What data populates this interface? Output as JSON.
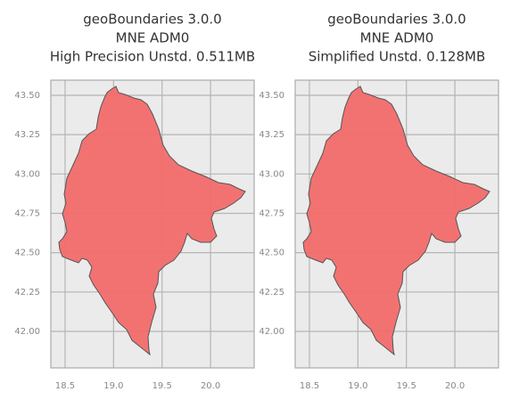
{
  "chart_data": [
    {
      "type": "map",
      "title": [
        "geoBoundaries 3.0.0",
        "MNE ADM0",
        "High Precision Unstd. 0.511MB"
      ],
      "xlim": [
        18.353,
        20.45
      ],
      "ylim": [
        41.768,
        43.596
      ],
      "xticks": [
        {
          "value": 18.5,
          "label": "18.5"
        },
        {
          "value": 19.0,
          "label": "19.0"
        },
        {
          "value": 19.5,
          "label": "19.5"
        },
        {
          "value": 20.0,
          "label": "20.0"
        }
      ],
      "yticks": [
        {
          "value": 42.0,
          "label": "42.00"
        },
        42.25,
        {
          "value": 42.5,
          "label": "42.50"
        },
        42.75,
        {
          "value": 43.0,
          "label": "43.00"
        },
        43.25,
        {
          "value": 43.5,
          "label": "43.50"
        }
      ],
      "color": "#f26b6b",
      "grid": true
    },
    {
      "type": "map",
      "title": [
        "geoBoundaries 3.0.0",
        "MNE ADM0",
        "Simplified Unstd. 0.128MB"
      ],
      "xlim": [
        18.353,
        20.45
      ],
      "ylim": [
        41.768,
        43.596
      ],
      "xticks": [
        {
          "value": 18.5,
          "label": "18.5"
        },
        {
          "value": 19.0,
          "label": "19.0"
        },
        {
          "value": 19.5,
          "label": "19.5"
        },
        {
          "value": 20.0,
          "label": "20.0"
        }
      ],
      "yticks": [
        {
          "value": 42.0,
          "label": "42.00"
        },
        42.25,
        {
          "value": 42.5,
          "label": "42.50"
        },
        42.75,
        {
          "value": 43.0,
          "label": "43.00"
        },
        43.25,
        {
          "value": 43.5,
          "label": "43.50"
        }
      ],
      "color": "#f26b6b",
      "grid": true
    }
  ]
}
